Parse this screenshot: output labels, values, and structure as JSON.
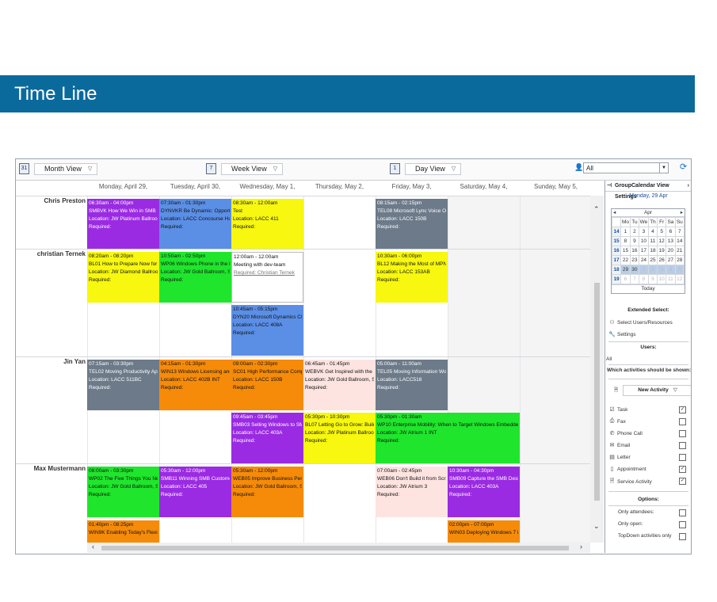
{
  "banner": {
    "title": "Time Line"
  },
  "toolbar": {
    "month_view": "Month View",
    "week_view": "Week View",
    "day_view": "Day View",
    "user_filter": "All"
  },
  "days": [
    "Monday, April 29,",
    "Tuesday, April 30,",
    "Wednesday, May 1,",
    "Thursday, May 2,",
    "Friday, May 3,",
    "Saturday, May 4,",
    "Sunday, May 5,"
  ],
  "users": [
    "Chris Preston",
    "christian Ternek",
    "Jin Yan",
    "Max Mustermann"
  ],
  "events": [
    {
      "time": "06:30am - 04:00pm",
      "title": "SMBVK How We Win in SMB",
      "loc": "Location: JW Platinum Ballroom",
      "req": "Required:",
      "color": "#9a2be2"
    },
    {
      "time": "07:30am - 01:30pm",
      "title": "DYNVKR Be Dynamic: Opportunities",
      "loc": "Location: LACC Concourse Hall 15",
      "req": "Required:",
      "color": "#5b8fe6"
    },
    {
      "time": "08:30am - 12:00am",
      "title": "Test",
      "loc": "Location: LACC 411",
      "req": "Required:",
      "color": "#f7f70f"
    },
    {
      "time": "08:15am - 02:15pm",
      "title": "TEL08 Microsoft Lync Voice Opportunity",
      "loc": "Location: LACC 150B",
      "req": "Required:",
      "color": "#6c7a89"
    },
    {
      "time": "08:20am - 08:20pm",
      "title": "BL01 How to Prepare Now for the",
      "loc": "Location: JW Diamond Ballroom, S",
      "req": "Required:",
      "color": "#f7f70f"
    },
    {
      "time": "10:50am - 02:50pm",
      "title": "WP06 Windows Phone in the Enterprise",
      "loc": "Location: JW Gold Ballroom, Salon",
      "req": "Required:",
      "color": "#1fe62c"
    },
    {
      "time": "12:00am - 12:00am",
      "title": "Meeting with dev-team",
      "loc": "Required: Christian Ternek",
      "req": "",
      "color": "#ffffff"
    },
    {
      "time": "10:30am - 06:00pm",
      "title": "BL12 Making the Most of MPN for",
      "loc": "Location: LACC 153AB",
      "req": "Required:",
      "color": "#f7f70f"
    },
    {
      "time": "10:45am - 05:15pm",
      "title": "DYN20 Microsoft Dynamics CRM Online",
      "loc": "Location: LACC 408A",
      "req": "Required:",
      "color": "#5b8fe6"
    },
    {
      "time": "07:15am - 03:30pm",
      "title": "TEL02 Moving Productivity Applications",
      "loc": "Location: LACC 511BC",
      "req": "Required:",
      "color": "#6c7a89"
    },
    {
      "time": "04:15am - 01:30pm",
      "title": "WIN13 Windows Licensing and Business",
      "loc": "Location: LACC 402B INT",
      "req": "Required:",
      "color": "#f58b09"
    },
    {
      "time": "09:00am - 02:30pm",
      "title": "SC01 High Performance Computing",
      "loc": "Location: LACC 150B",
      "req": "Required:",
      "color": "#f58b09"
    },
    {
      "time": "06:45am - 01:45pm",
      "title": "WEBVK Get Inspired with the Microsoft",
      "loc": "Location: JW Gold Ballroom, Salon",
      "req": "Required:",
      "color": "#fde4e1"
    },
    {
      "time": "05:00am - 11:00am",
      "title": "TEL05 Moving Information Workers",
      "loc": "Location: LACC518",
      "req": "Required:",
      "color": "#6c7a89"
    },
    {
      "time": "09:45am - 03:45pm",
      "title": "SMB03 Selling Windows to SMB: What",
      "loc": "Location: LACC 403A",
      "req": "Required:",
      "color": "#9a2be2"
    },
    {
      "time": "05:30pm - 10:30pm",
      "title": "BL07 Letting Go to Grow: Building",
      "loc": "Location: JW Platinum Ballroom",
      "req": "Required:",
      "color": "#f7f70f"
    },
    {
      "time": "05:30pm - 01:30am",
      "title": "WP10 Enterprise Mobility: When to Target Windows Embedded Handheld",
      "loc": "Location: JW Atrium 1 INT",
      "req": "Required:",
      "color": "#1fe62c"
    },
    {
      "time": "08:00am - 03:30pm",
      "title": "WP02 The Five Things You Need to Know",
      "loc": "Location: JW Gold Ballroom, Salon",
      "req": "Required:",
      "color": "#1fe62c"
    },
    {
      "time": "05:30am - 12:00pm",
      "title": "SMB11 Winning SMB Customers with",
      "loc": "Location: LACC 405",
      "req": "Required:",
      "color": "#9a2be2"
    },
    {
      "time": "05:30am - 12:00pm",
      "title": "WEB05 Improve Business Performance",
      "loc": "Location: JW Gold Ballroom, Salon",
      "req": "Required:",
      "color": "#f58b09"
    },
    {
      "time": "07:00am - 02:45pm",
      "title": "WEB06 Don't Build it from Scratch",
      "loc": "Location: JW Atrium 3",
      "req": "Required:",
      "color": "#fde4e1"
    },
    {
      "time": "10:30am - 04:30pm",
      "title": "SMB09 Capture the SMB Desktop Opportunity",
      "loc": "Location: LACC 403A",
      "req": "Required:",
      "color": "#9a2be2"
    },
    {
      "time": "01:40pm - 08:25pm",
      "title": "WIN9K Enabling Today's Flexible Workstyle",
      "loc": "",
      "req": "",
      "color": "#f58b09"
    },
    {
      "time": "02:00pm - 07:00pm",
      "title": "WIN03 Deploying Windows 7 in the Enterprise",
      "loc": "",
      "req": "",
      "color": "#f58b09"
    }
  ],
  "panel": {
    "title": "GroupCalendar View Settings",
    "date": "Monday, 29 Apr",
    "mini_month": "Apr",
    "weekdays": [
      "Mo",
      "Tu",
      "We",
      "Th",
      "Fr",
      "Sa",
      "Su"
    ],
    "weeks": [
      {
        "wk": "14",
        "days": [
          "1",
          "2",
          "3",
          "4",
          "5",
          "6",
          "7"
        ]
      },
      {
        "wk": "15",
        "days": [
          "8",
          "9",
          "10",
          "11",
          "12",
          "13",
          "14"
        ]
      },
      {
        "wk": "16",
        "days": [
          "15",
          "16",
          "17",
          "18",
          "19",
          "20",
          "21"
        ]
      },
      {
        "wk": "17",
        "days": [
          "22",
          "23",
          "24",
          "25",
          "26",
          "27",
          "28"
        ]
      },
      {
        "wk": "18",
        "days": [
          "29",
          "30",
          "1",
          "2",
          "3",
          "4",
          "5"
        ]
      },
      {
        "wk": "19",
        "days": [
          "6",
          "7",
          "8",
          "9",
          "10",
          "11",
          "12"
        ]
      }
    ],
    "today": "Today",
    "extended_select": "Extended Select:",
    "select_users": "Select Users/Resources",
    "settings": "Settings",
    "users_label": "Users:",
    "users_value": "All",
    "activities_label": "Which activities should be shown:",
    "new_activity": "New Activity",
    "activities": [
      {
        "label": "Task",
        "icon": "task-icon",
        "checked": true
      },
      {
        "label": "Fax",
        "icon": "fax-icon",
        "checked": false
      },
      {
        "label": "Phone Call",
        "icon": "phone-icon",
        "checked": false
      },
      {
        "label": "Email",
        "icon": "email-icon",
        "checked": false
      },
      {
        "label": "Letter",
        "icon": "letter-icon",
        "checked": false
      },
      {
        "label": "Appointment",
        "icon": "appointment-icon",
        "checked": true
      },
      {
        "label": "Service Activity",
        "icon": "service-activity-icon",
        "checked": true
      }
    ],
    "options_label": "Options:",
    "options": [
      {
        "label": "Only attendees:",
        "checked": false
      },
      {
        "label": "Only open:",
        "checked": false
      },
      {
        "label": "TopDown activities only",
        "checked": false
      }
    ]
  }
}
